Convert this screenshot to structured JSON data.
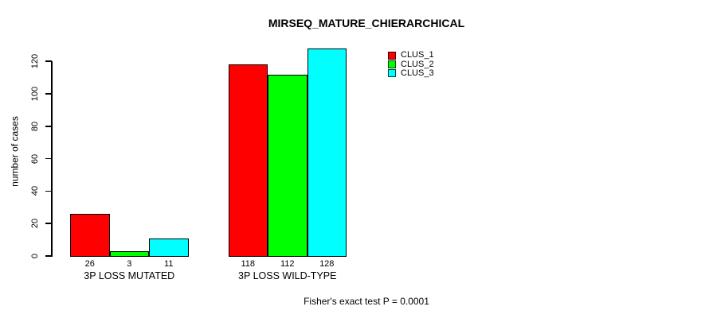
{
  "title": "MIRSEQ_MATURE_CHIERARCHICAL",
  "caption": "Fisher's exact test P = 0.0001",
  "y_axis": {
    "label": "number of cases",
    "ticks": [
      0,
      20,
      40,
      60,
      80,
      100,
      120
    ]
  },
  "legend": [
    {
      "label": "CLUS_1",
      "color": "#FF0000"
    },
    {
      "label": "CLUS_2",
      "color": "#00FF00"
    },
    {
      "label": "CLUS_3",
      "color": "#00FFFF"
    }
  ],
  "chart_data": {
    "type": "bar",
    "title": "MIRSEQ_MATURE_CHIERARCHICAL",
    "categories": [
      "3P LOSS MUTATED",
      "3P LOSS WILD-TYPE"
    ],
    "series": [
      {
        "name": "CLUS_1",
        "color": "#FF0000",
        "values": [
          26,
          118
        ]
      },
      {
        "name": "CLUS_2",
        "color": "#00FF00",
        "values": [
          3,
          112
        ]
      },
      {
        "name": "CLUS_3",
        "color": "#00FFFF",
        "values": [
          11,
          128
        ]
      }
    ],
    "bar_value_labels": [
      [
        26,
        3,
        11
      ],
      [
        118,
        112,
        128
      ]
    ],
    "xlabel": "",
    "ylabel": "number of cases",
    "yticks": [
      0,
      20,
      40,
      60,
      80,
      100,
      120
    ],
    "ylim": [
      0,
      130
    ],
    "grid": false,
    "legend_position": "top-right",
    "annotation": "Fisher's exact test P = 0.0001",
    "background": "#FFFFFF",
    "axis_color": "#000000"
  }
}
